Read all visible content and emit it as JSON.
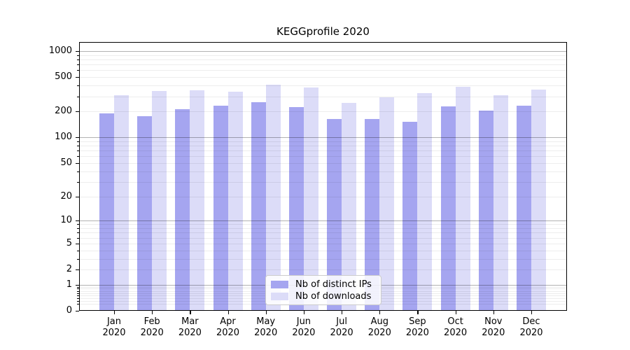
{
  "chart_data": {
    "type": "bar",
    "title": "KEGGprofile 2020",
    "categories": [
      "Jan 2020",
      "Feb 2020",
      "Mar 2020",
      "Apr 2020",
      "May 2020",
      "Jun 2020",
      "Jul 2020",
      "Aug 2020",
      "Sep 2020",
      "Oct 2020",
      "Nov 2020",
      "Dec 2020"
    ],
    "xtick_months": [
      "Jan",
      "Feb",
      "Mar",
      "Apr",
      "May",
      "Jun",
      "Jul",
      "Aug",
      "Sep",
      "Oct",
      "Nov",
      "Dec"
    ],
    "xtick_year": "2020",
    "series": [
      {
        "name": "Nb of distinct IPs",
        "color": "#a5a5f0",
        "values": [
          190,
          176,
          212,
          234,
          256,
          225,
          164,
          164,
          152,
          231,
          206,
          232
        ]
      },
      {
        "name": "Nb of downloads",
        "color": "#dcdcf8",
        "values": [
          308,
          345,
          354,
          337,
          411,
          379,
          251,
          292,
          325,
          384,
          308,
          358
        ]
      }
    ],
    "yscale": "log1p",
    "ylim": [
      0,
      1274
    ],
    "yticks": [
      0,
      1,
      2,
      5,
      10,
      20,
      50,
      100,
      200,
      500,
      1000
    ],
    "grid": "both",
    "legend_position": "lower center",
    "colors": {
      "major_grid": "rgba(0,0,0,0.30)",
      "minor_grid": "rgba(0,0,0,0.07)",
      "axis_frame": "#000000",
      "tick_label": "#000000",
      "legend_border": "#cccccc",
      "legend_bg": "rgba(255,255,255,0.85)"
    }
  }
}
